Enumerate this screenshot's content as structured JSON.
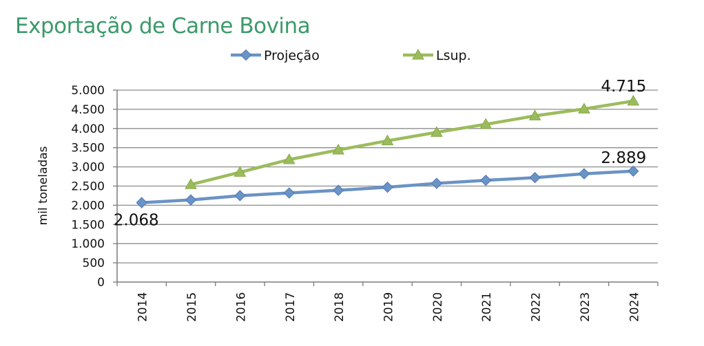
{
  "colors": {
    "title": "#3a9a6a",
    "projecao": "#6a93c6",
    "projecao_dark": "#4f7ab3",
    "lsup": "#9cbc5c",
    "lsup_dark": "#86a84a",
    "grid": "#8c8c8c",
    "axis": "#7a7a7a"
  },
  "chart_data": {
    "type": "line",
    "title": "Exportação de Carne Bovina",
    "xlabel": "",
    "ylabel": "mil toneladas",
    "categories": [
      "2014",
      "2015",
      "2016",
      "2017",
      "2018",
      "2019",
      "2020",
      "2021",
      "2022",
      "2023",
      "2024"
    ],
    "ylim": [
      0,
      5000
    ],
    "yticks": [
      0,
      500,
      1000,
      1500,
      2000,
      2500,
      3000,
      3500,
      4000,
      4500,
      5000
    ],
    "ytick_labels": [
      "0",
      "500",
      "1.000",
      "1.500",
      "2.000",
      "2.500",
      "3.000",
      "3.500",
      "4.000",
      "4.500",
      "5.000"
    ],
    "grid": true,
    "legend_position": "top",
    "series": [
      {
        "name": "Projeção",
        "marker": "diamond",
        "values": [
          2068,
          2140,
          2250,
          2320,
          2390,
          2470,
          2570,
          2650,
          2720,
          2820,
          2889
        ]
      },
      {
        "name": "Lsup.",
        "marker": "triangle",
        "values": [
          null,
          2540,
          2860,
          3190,
          3440,
          3680,
          3900,
          4110,
          4330,
          4510,
          4715
        ]
      }
    ],
    "annotations": [
      {
        "text": "2.068",
        "series": 0,
        "index": 0
      },
      {
        "text": "2.889",
        "series": 0,
        "index": 10
      },
      {
        "text": "4.715",
        "series": 1,
        "index": 10
      }
    ]
  }
}
